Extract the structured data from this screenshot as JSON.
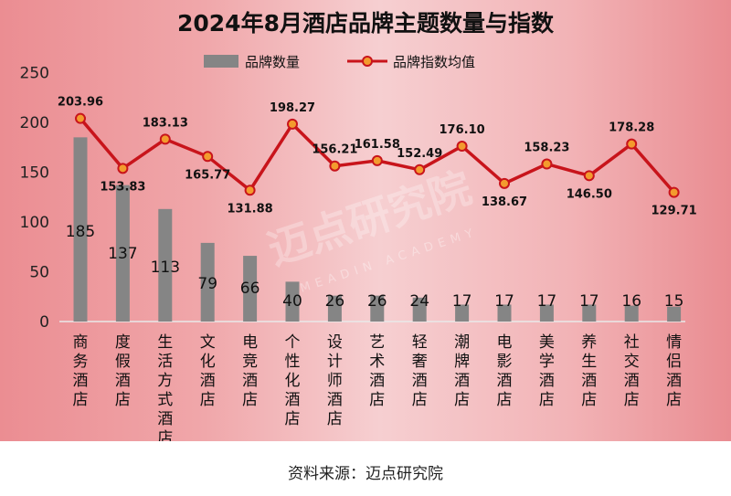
{
  "title": "2024年8月酒店品牌主题数量与指数",
  "source": "资料来源：迈点研究院",
  "watermark": {
    "logo": "迈点研究院",
    "sub": "MEADIN ACADEMY"
  },
  "colors": {
    "bar": "#858585",
    "line": "#c8141b",
    "marker_fill": "#f39b2e"
  },
  "chart_data": {
    "type": "bar",
    "categories": [
      "商务酒店",
      "度假酒店",
      "生活方式酒店",
      "文化酒店",
      "电竞酒店",
      "个性化酒店",
      "设计师酒店",
      "艺术酒店",
      "轻奢酒店",
      "潮牌酒店",
      "电影酒店",
      "美学酒店",
      "养生酒店",
      "社交酒店",
      "情侣酒店"
    ],
    "series": [
      {
        "name": "品牌数量",
        "type": "bar",
        "values": [
          185,
          137,
          113,
          79,
          66,
          40,
          26,
          26,
          24,
          17,
          17,
          17,
          17,
          16,
          15
        ]
      },
      {
        "name": "品牌指数均值",
        "type": "line",
        "values": [
          203.96,
          153.83,
          183.13,
          165.77,
          131.88,
          198.27,
          156.21,
          161.58,
          152.49,
          176.1,
          138.67,
          158.23,
          146.5,
          178.28,
          129.71
        ]
      }
    ],
    "yticks": [
      0,
      50,
      100,
      150,
      200,
      250
    ],
    "ylim": [
      0,
      250
    ],
    "legend_position": "top"
  }
}
